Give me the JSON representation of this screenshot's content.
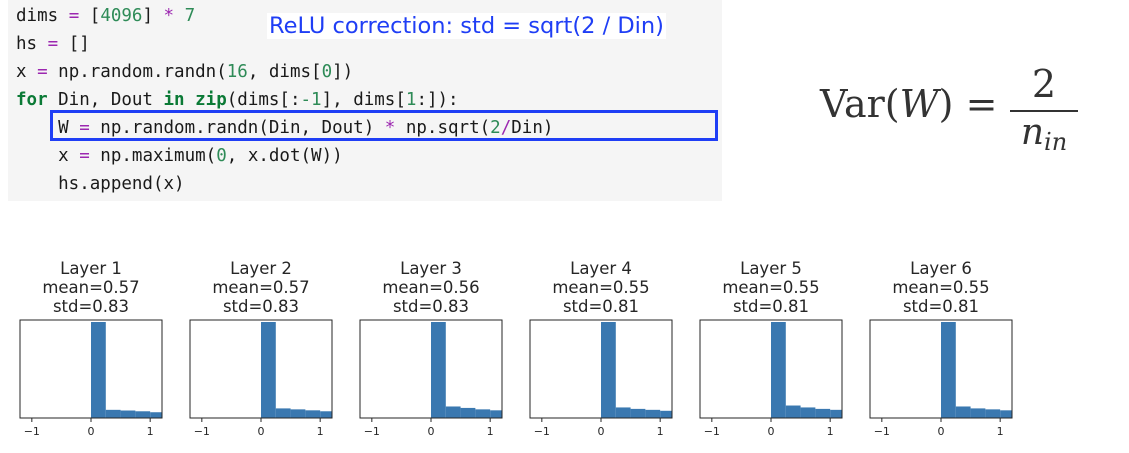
{
  "code": {
    "lines": [
      [
        {
          "t": "dims ",
          "c": "fn"
        },
        {
          "t": "=",
          "c": "op"
        },
        {
          "t": " [",
          "c": "fn"
        },
        {
          "t": "4096",
          "c": "num"
        },
        {
          "t": "] ",
          "c": "fn"
        },
        {
          "t": "*",
          "c": "op"
        },
        {
          "t": " ",
          "c": "fn"
        },
        {
          "t": "7",
          "c": "num"
        }
      ],
      [
        {
          "t": "hs ",
          "c": "fn"
        },
        {
          "t": "=",
          "c": "op"
        },
        {
          "t": " []",
          "c": "fn"
        }
      ],
      [
        {
          "t": "x ",
          "c": "fn"
        },
        {
          "t": "=",
          "c": "op"
        },
        {
          "t": " np.random.randn(",
          "c": "fn"
        },
        {
          "t": "16",
          "c": "num"
        },
        {
          "t": ", dims[",
          "c": "fn"
        },
        {
          "t": "0",
          "c": "num"
        },
        {
          "t": "])",
          "c": "fn"
        }
      ],
      [
        {
          "t": "for",
          "c": "kw"
        },
        {
          "t": " Din, Dout ",
          "c": "fn"
        },
        {
          "t": "in",
          "c": "kw"
        },
        {
          "t": " ",
          "c": "fn"
        },
        {
          "t": "zip",
          "c": "kw"
        },
        {
          "t": "(dims[:",
          "c": "fn"
        },
        {
          "t": "-1",
          "c": "num"
        },
        {
          "t": "], dims[",
          "c": "fn"
        },
        {
          "t": "1",
          "c": "num"
        },
        {
          "t": ":]):",
          "c": "fn"
        }
      ],
      [
        {
          "t": "    W ",
          "c": "fn"
        },
        {
          "t": "=",
          "c": "op"
        },
        {
          "t": " np.random.randn(Din, Dout) ",
          "c": "fn"
        },
        {
          "t": "*",
          "c": "op"
        },
        {
          "t": " np.sqrt(",
          "c": "fn"
        },
        {
          "t": "2",
          "c": "num"
        },
        {
          "t": "/",
          "c": "op"
        },
        {
          "t": "Din)",
          "c": "fn"
        }
      ],
      [
        {
          "t": "    x ",
          "c": "fn"
        },
        {
          "t": "=",
          "c": "op"
        },
        {
          "t": " np.maximum(",
          "c": "fn"
        },
        {
          "t": "0",
          "c": "num"
        },
        {
          "t": ", x.dot(W))",
          "c": "fn"
        }
      ],
      [
        {
          "t": "    hs.append(x)",
          "c": "fn"
        }
      ]
    ]
  },
  "annotation": {
    "relu_note": "ReLU correction: std = sqrt(2 / Din)"
  },
  "formula": {
    "var": "Var",
    "arg": "W",
    "equals": "=",
    "numerator": "2",
    "denominator_base": "n",
    "denominator_sub": "in"
  },
  "colors": {
    "bar": "#3a78b0",
    "accent_blue": "#1f3ef5",
    "code_operator": "#9c27b0",
    "code_number": "#2e8b57",
    "code_keyword": "#0b7a36"
  },
  "chart_data": [
    {
      "type": "bar",
      "title": "Layer 1",
      "mean": "mean=0.57",
      "std": "std=0.83",
      "xlim": [
        -1.2,
        1.2
      ],
      "xticks": [
        -1,
        0,
        1
      ],
      "bins": [
        0,
        0.25,
        0.5,
        0.75,
        1.0,
        1.2
      ],
      "heights": [
        1.0,
        0.085,
        0.078,
        0.07,
        0.06
      ]
    },
    {
      "type": "bar",
      "title": "Layer 2",
      "mean": "mean=0.57",
      "std": "std=0.83",
      "xlim": [
        -1.2,
        1.2
      ],
      "xticks": [
        -1,
        0,
        1
      ],
      "bins": [
        0,
        0.25,
        0.5,
        0.75,
        1.0,
        1.2
      ],
      "heights": [
        1.0,
        0.1,
        0.09,
        0.08,
        0.07
      ]
    },
    {
      "type": "bar",
      "title": "Layer 3",
      "mean": "mean=0.56",
      "std": "std=0.83",
      "xlim": [
        -1.2,
        1.2
      ],
      "xticks": [
        -1,
        0,
        1
      ],
      "bins": [
        0,
        0.25,
        0.5,
        0.75,
        1.0,
        1.2
      ],
      "heights": [
        1.0,
        0.12,
        0.105,
        0.09,
        0.08
      ]
    },
    {
      "type": "bar",
      "title": "Layer 4",
      "mean": "mean=0.55",
      "std": "std=0.81",
      "xlim": [
        -1.2,
        1.2
      ],
      "xticks": [
        -1,
        0,
        1
      ],
      "bins": [
        0,
        0.25,
        0.5,
        0.75,
        1.0,
        1.2
      ],
      "heights": [
        1.0,
        0.11,
        0.095,
        0.085,
        0.075
      ]
    },
    {
      "type": "bar",
      "title": "Layer 5",
      "mean": "mean=0.55",
      "std": "std=0.81",
      "xlim": [
        -1.2,
        1.2
      ],
      "xticks": [
        -1,
        0,
        1
      ],
      "bins": [
        0,
        0.25,
        0.5,
        0.75,
        1.0,
        1.2
      ],
      "heights": [
        1.0,
        0.13,
        0.11,
        0.095,
        0.085
      ]
    },
    {
      "type": "bar",
      "title": "Layer 6",
      "mean": "mean=0.55",
      "std": "std=0.81",
      "xlim": [
        -1.2,
        1.2
      ],
      "xticks": [
        -1,
        0,
        1
      ],
      "bins": [
        0,
        0.25,
        0.5,
        0.75,
        1.0,
        1.2
      ],
      "heights": [
        1.0,
        0.12,
        0.1,
        0.09,
        0.08
      ]
    }
  ]
}
